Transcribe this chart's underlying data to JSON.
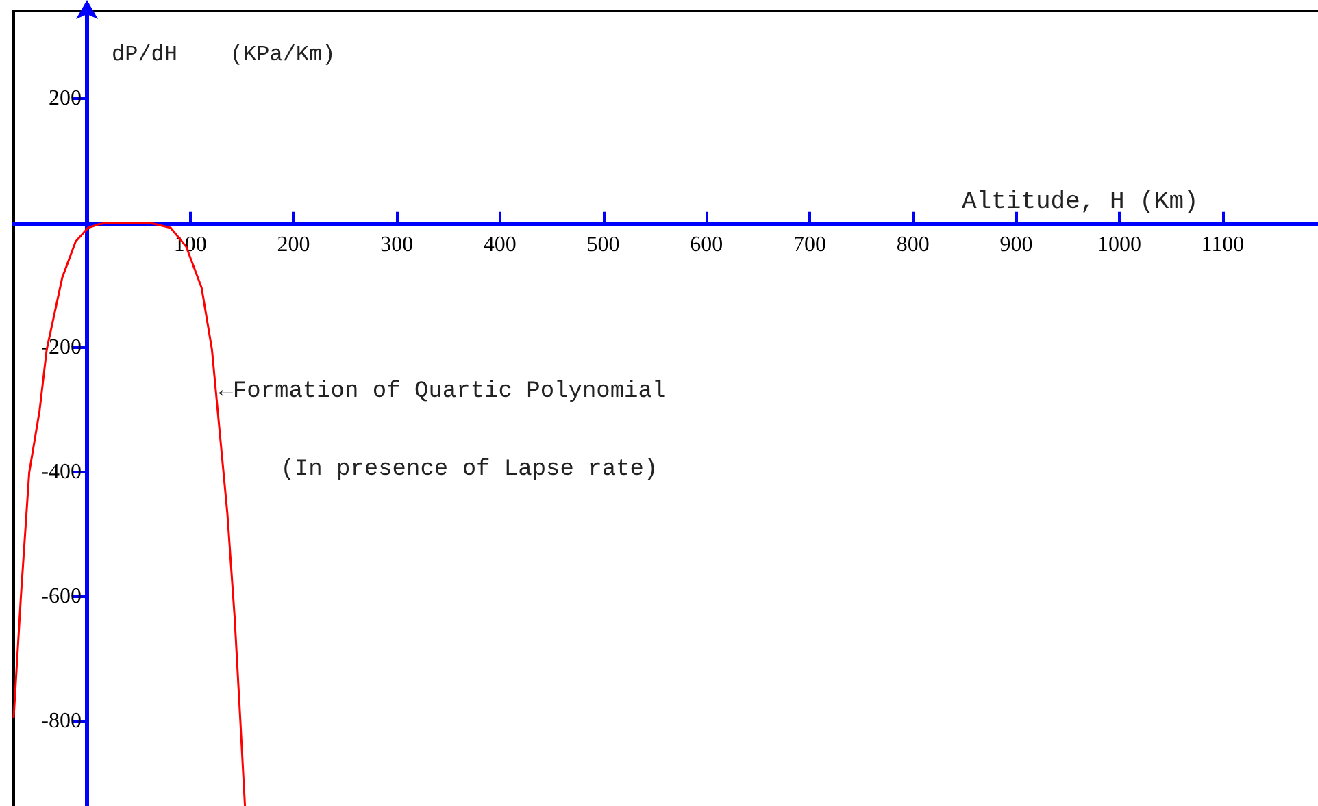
{
  "chart_data": {
    "type": "line",
    "xlabel": "Altitude, H (Km)",
    "ylabel": "dP/dH    (KPa/Km)",
    "annotations": [
      {
        "text": "←Formation of Quartic Polynomial",
        "x": 125,
        "y": -275
      },
      "(In presence of Lapse rate)"
    ],
    "series": [
      {
        "color": "#ff0000",
        "x": [
          -71,
          -64,
          -56,
          -46,
          -39,
          -24,
          -11,
          1,
          12,
          20,
          35,
          50,
          61,
          81,
          96,
          111,
          121,
          128.5,
          136,
          143,
          148.5,
          153
        ],
        "values": [
          -793,
          -599,
          -401,
          -302,
          -203,
          -88,
          -30,
          -8,
          -2,
          0,
          0,
          0,
          0,
          -8,
          -38,
          -104,
          -203,
          -335,
          -467,
          -633,
          -798,
          -936
        ]
      }
    ],
    "xlim": [
      -71,
      1195
    ],
    "ylim": [
      -940,
      340
    ],
    "xticks": [
      100,
      200,
      300,
      400,
      500,
      600,
      700,
      800,
      900,
      1000,
      1100
    ],
    "yticks": [
      200,
      -200,
      -400,
      -600,
      -800
    ],
    "marker": "none",
    "line_style": "solid"
  }
}
